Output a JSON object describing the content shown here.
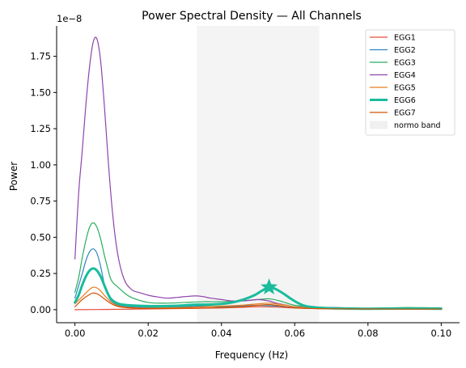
{
  "chart_data": {
    "type": "line",
    "title": "Power Spectral Density — All Channels",
    "xlabel": "Frequency (Hz)",
    "ylabel": "Power",
    "y_offset_text": "1e−8",
    "y_scale": 1e-08,
    "xlim": [
      -0.005,
      0.105
    ],
    "ylim": [
      -0.09,
      1.96
    ],
    "x_ticks": [
      0.0,
      0.02,
      0.04,
      0.06,
      0.08,
      0.1
    ],
    "x_tick_labels": [
      "0.00",
      "0.02",
      "0.04",
      "0.06",
      "0.08",
      "0.10"
    ],
    "y_ticks": [
      0.0,
      0.25,
      0.5,
      0.75,
      1.0,
      1.25,
      1.5,
      1.75
    ],
    "y_tick_labels": [
      "0.00",
      "0.25",
      "0.50",
      "0.75",
      "1.00",
      "1.25",
      "1.50",
      "1.75"
    ],
    "grid": false,
    "legend_position": "top-right",
    "band": {
      "name": "normo band",
      "x0": 0.0333,
      "x1": 0.0667,
      "color": "#e6e6e6"
    },
    "peak_marker": {
      "x": 0.053,
      "y": 0.155,
      "color": "#1abc9c",
      "shape": "star"
    },
    "series": [
      {
        "name": "EGG1",
        "color": "#e74c3c",
        "width": 1.2,
        "x": [
          0,
          0.01,
          0.02,
          0.03,
          0.04,
          0.045,
          0.05,
          0.055,
          0.06,
          0.07,
          0.08,
          0.09,
          0.1
        ],
        "y": [
          0.0,
          0.002,
          0.005,
          0.008,
          0.012,
          0.016,
          0.02,
          0.018,
          0.012,
          0.006,
          0.004,
          0.004,
          0.003
        ]
      },
      {
        "name": "EGG2",
        "color": "#2e86c1",
        "width": 1.2,
        "x": [
          0,
          0.002,
          0.003,
          0.004,
          0.005,
          0.006,
          0.007,
          0.008,
          0.009,
          0.01,
          0.012,
          0.015,
          0.02,
          0.025,
          0.03,
          0.035,
          0.04,
          0.045,
          0.05,
          0.055,
          0.06,
          0.065,
          0.07,
          0.08,
          0.09,
          0.1
        ],
        "y": [
          0.08,
          0.25,
          0.34,
          0.4,
          0.42,
          0.39,
          0.3,
          0.18,
          0.1,
          0.06,
          0.03,
          0.02,
          0.015,
          0.015,
          0.02,
          0.025,
          0.02,
          0.025,
          0.03,
          0.025,
          0.015,
          0.01,
          0.008,
          0.006,
          0.005,
          0.004
        ]
      },
      {
        "name": "EGG3",
        "color": "#27ae60",
        "width": 1.2,
        "x": [
          0,
          0.001,
          0.002,
          0.003,
          0.004,
          0.005,
          0.006,
          0.007,
          0.008,
          0.009,
          0.01,
          0.012,
          0.015,
          0.02,
          0.025,
          0.03,
          0.035,
          0.04,
          0.045,
          0.05,
          0.053,
          0.056,
          0.06,
          0.065,
          0.07,
          0.075,
          0.08,
          0.085,
          0.09,
          0.095,
          0.1
        ],
        "y": [
          0.12,
          0.22,
          0.36,
          0.48,
          0.57,
          0.6,
          0.57,
          0.49,
          0.38,
          0.28,
          0.2,
          0.15,
          0.09,
          0.05,
          0.045,
          0.05,
          0.055,
          0.055,
          0.06,
          0.07,
          0.075,
          0.06,
          0.03,
          0.02,
          0.015,
          0.012,
          0.01,
          0.012,
          0.015,
          0.014,
          0.013
        ]
      },
      {
        "name": "EGG4",
        "color": "#8e44ad",
        "width": 1.2,
        "x": [
          0,
          0.001,
          0.002,
          0.003,
          0.004,
          0.005,
          0.006,
          0.007,
          0.008,
          0.009,
          0.01,
          0.011,
          0.012,
          0.013,
          0.014,
          0.015,
          0.016,
          0.018,
          0.02,
          0.022,
          0.025,
          0.028,
          0.03,
          0.033,
          0.035,
          0.037,
          0.04,
          0.043,
          0.045,
          0.048,
          0.05,
          0.053,
          0.055,
          0.058,
          0.06,
          0.065,
          0.07,
          0.08,
          0.09,
          0.1
        ],
        "y": [
          0.35,
          0.8,
          1.1,
          1.42,
          1.68,
          1.85,
          1.87,
          1.72,
          1.42,
          1.06,
          0.74,
          0.5,
          0.34,
          0.24,
          0.18,
          0.15,
          0.13,
          0.115,
          0.1,
          0.09,
          0.08,
          0.085,
          0.09,
          0.095,
          0.09,
          0.08,
          0.07,
          0.06,
          0.06,
          0.065,
          0.07,
          0.06,
          0.045,
          0.03,
          0.02,
          0.015,
          0.015,
          0.01,
          0.012,
          0.01
        ]
      },
      {
        "name": "EGG5",
        "color": "#e67e22",
        "width": 1.2,
        "x": [
          0,
          0.002,
          0.004,
          0.005,
          0.006,
          0.007,
          0.008,
          0.01,
          0.012,
          0.015,
          0.02,
          0.025,
          0.03,
          0.035,
          0.04,
          0.045,
          0.05,
          0.053,
          0.055,
          0.058,
          0.06,
          0.065,
          0.07,
          0.08,
          0.09,
          0.1
        ],
        "y": [
          0.04,
          0.09,
          0.14,
          0.155,
          0.15,
          0.13,
          0.1,
          0.05,
          0.025,
          0.015,
          0.01,
          0.012,
          0.015,
          0.02,
          0.025,
          0.03,
          0.04,
          0.045,
          0.04,
          0.03,
          0.02,
          0.012,
          0.008,
          0.006,
          0.005,
          0.005
        ]
      },
      {
        "name": "EGG6",
        "color": "#1abc9c",
        "width": 3,
        "x": [
          0,
          0.001,
          0.002,
          0.003,
          0.004,
          0.005,
          0.006,
          0.007,
          0.008,
          0.009,
          0.01,
          0.012,
          0.015,
          0.02,
          0.025,
          0.03,
          0.033,
          0.036,
          0.04,
          0.043,
          0.046,
          0.049,
          0.051,
          0.053,
          0.055,
          0.057,
          0.059,
          0.061,
          0.063,
          0.066,
          0.07,
          0.075,
          0.08,
          0.09,
          0.1
        ],
        "y": [
          0.05,
          0.1,
          0.17,
          0.23,
          0.27,
          0.285,
          0.27,
          0.23,
          0.17,
          0.11,
          0.07,
          0.04,
          0.03,
          0.025,
          0.025,
          0.03,
          0.035,
          0.035,
          0.04,
          0.05,
          0.07,
          0.1,
          0.13,
          0.155,
          0.14,
          0.11,
          0.075,
          0.045,
          0.025,
          0.015,
          0.01,
          0.008,
          0.006,
          0.008,
          0.006
        ]
      },
      {
        "name": "EGG7",
        "color": "#d35400",
        "width": 1.2,
        "x": [
          0,
          0.002,
          0.004,
          0.005,
          0.006,
          0.007,
          0.008,
          0.01,
          0.012,
          0.015,
          0.02,
          0.025,
          0.03,
          0.035,
          0.04,
          0.045,
          0.05,
          0.053,
          0.055,
          0.058,
          0.06,
          0.065,
          0.07,
          0.08,
          0.09,
          0.1
        ],
        "y": [
          0.02,
          0.07,
          0.105,
          0.115,
          0.11,
          0.095,
          0.075,
          0.04,
          0.02,
          0.012,
          0.008,
          0.008,
          0.01,
          0.012,
          0.015,
          0.02,
          0.03,
          0.035,
          0.03,
          0.02,
          0.012,
          0.008,
          0.006,
          0.005,
          0.004,
          0.004
        ]
      }
    ]
  }
}
